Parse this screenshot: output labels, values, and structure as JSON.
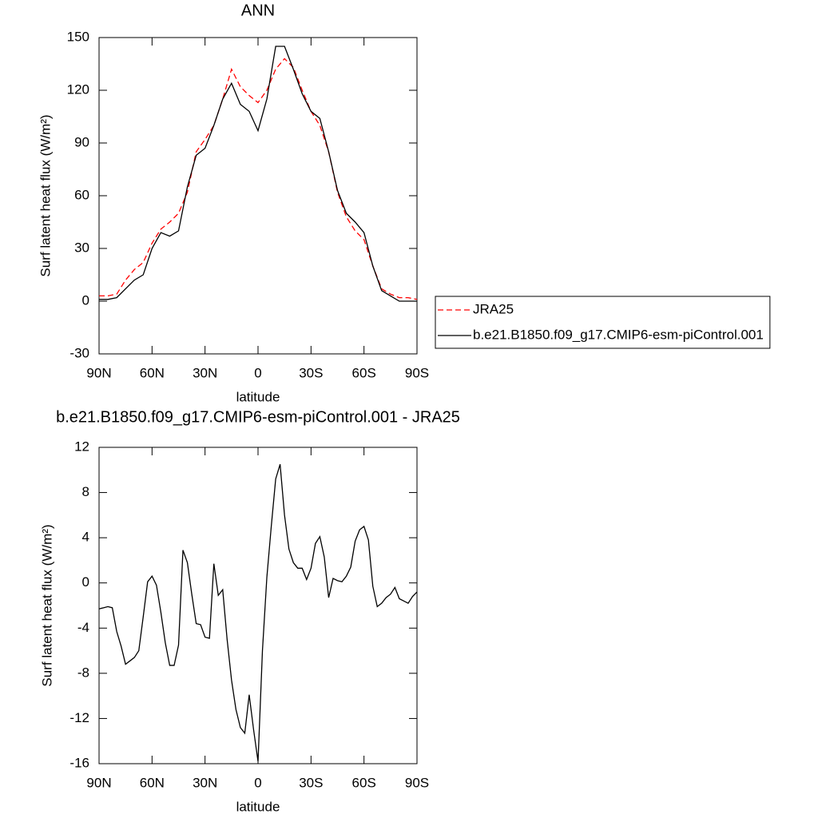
{
  "chart_data": [
    {
      "type": "line",
      "title": "ANN",
      "xlabel": "latitude",
      "ylabel": "Surf latent heat flux (W/m²)",
      "x": [
        90,
        85,
        80,
        75,
        70,
        65,
        60,
        55,
        50,
        45,
        40,
        35,
        30,
        25,
        20,
        15,
        10,
        5,
        0,
        -5,
        -10,
        -15,
        -20,
        -25,
        -30,
        -35,
        -40,
        -45,
        -50,
        -55,
        -60,
        -65,
        -70,
        -75,
        -80,
        -85,
        -90
      ],
      "series": [
        {
          "name": "JRA25",
          "color": "#ff0000",
          "style": "dashed",
          "values": [
            3,
            3,
            4,
            12,
            18,
            22,
            33,
            41,
            45,
            50,
            62,
            85,
            92,
            100,
            115,
            132,
            122,
            117,
            113,
            120,
            132,
            138,
            133,
            120,
            108,
            100,
            85,
            62,
            48,
            40,
            35,
            20,
            7,
            4,
            2,
            2,
            1
          ]
        },
        {
          "name": "b.e21.B1850.f09_g17.CMIP6-esm-piControl.001",
          "color": "#000000",
          "style": "solid",
          "values": [
            1,
            1,
            2,
            7,
            12,
            15,
            30,
            39,
            37,
            40,
            65,
            83,
            87,
            100,
            115,
            124,
            112,
            108,
            97,
            115,
            145,
            145,
            132,
            118,
            108,
            104,
            85,
            63,
            50,
            45,
            39,
            20,
            6,
            3,
            0,
            0,
            0
          ]
        }
      ],
      "xlim": [
        90,
        -90
      ],
      "xticks": [
        {
          "value": 90,
          "label": "90N"
        },
        {
          "value": 60,
          "label": "60N"
        },
        {
          "value": 30,
          "label": "30N"
        },
        0,
        {
          "value": -30,
          "label": "30S"
        },
        {
          "value": -60,
          "label": "60S"
        },
        {
          "value": -90,
          "label": "90S"
        }
      ],
      "ylim": [
        -30,
        150
      ],
      "yticks": [
        -30,
        0,
        30,
        60,
        90,
        120,
        150
      ],
      "legend": "right"
    },
    {
      "type": "line",
      "title": "b.e21.B1850.f09_g17.CMIP6-esm-piControl.001 - JRA25",
      "xlabel": "latitude",
      "ylabel": "Surf latent heat flux (W/m²)",
      "x": [
        90,
        87.5,
        85,
        82.5,
        80,
        77.5,
        75,
        72.5,
        70,
        67.5,
        65,
        62.5,
        60,
        57.5,
        55,
        52.5,
        50,
        47.5,
        45,
        42.5,
        40,
        37.5,
        35,
        32.5,
        30,
        27.5,
        25,
        22.5,
        20,
        17.5,
        15,
        12.5,
        10,
        7.5,
        5,
        2.5,
        0,
        -2.5,
        -5,
        -7.5,
        -10,
        -12.5,
        -15,
        -17.5,
        -20,
        -22.5,
        -25,
        -27.5,
        -30,
        -32.5,
        -35,
        -37.5,
        -40,
        -42.5,
        -45,
        -47.5,
        -50,
        -52.5,
        -55,
        -57.5,
        -60,
        -62.5,
        -65,
        -67.5,
        -70,
        -72.5,
        -75,
        -77.5,
        -80,
        -82.5,
        -85,
        -87.5,
        -90
      ],
      "series": [
        {
          "name": "b.e21.B1850.f09_g17.CMIP6-esm-piControl.001 - JRA25",
          "color": "#000000",
          "style": "solid",
          "values": [
            -2.3,
            -2.2,
            -2.1,
            -2.2,
            -4.3,
            -5.6,
            -7.2,
            -6.9,
            -6.6,
            -6.0,
            -3,
            0.1,
            0.6,
            -0.2,
            -2.6,
            -5.3,
            -7.3,
            -7.3,
            -5.5,
            2.9,
            1.8,
            -1.0,
            -3.6,
            -3.7,
            -4.8,
            -4.9,
            1.7,
            -1.1,
            -0.6,
            -5.0,
            -8.6,
            -11.2,
            -12.8,
            -13.3,
            -9.9,
            -13,
            -15.8,
            -6,
            0.5,
            5,
            9.2,
            10.5,
            6,
            3,
            1.8,
            1.3,
            1.3,
            0.3,
            1.3,
            3.5,
            4.1,
            2.3,
            -1.3,
            0.4,
            0.2,
            0.1,
            0.6,
            1.4,
            3.7,
            4.7,
            5.0,
            3.8,
            -0.3,
            -2.1,
            -1.8,
            -1.3,
            -1.0,
            -0.4,
            -1.4,
            -1.6,
            -1.8,
            -1.2,
            -0.8
          ]
        }
      ],
      "xlim": [
        90,
        -90
      ],
      "xticks": [
        {
          "value": 90,
          "label": "90N"
        },
        {
          "value": 60,
          "label": "60N"
        },
        {
          "value": 30,
          "label": "30N"
        },
        0,
        {
          "value": -30,
          "label": "30S"
        },
        {
          "value": -60,
          "label": "60S"
        },
        {
          "value": -90,
          "label": "90S"
        }
      ],
      "ylim": [
        -16,
        12
      ],
      "yticks": [
        -16,
        -12,
        -8,
        -4,
        0,
        4,
        8,
        12
      ]
    }
  ]
}
